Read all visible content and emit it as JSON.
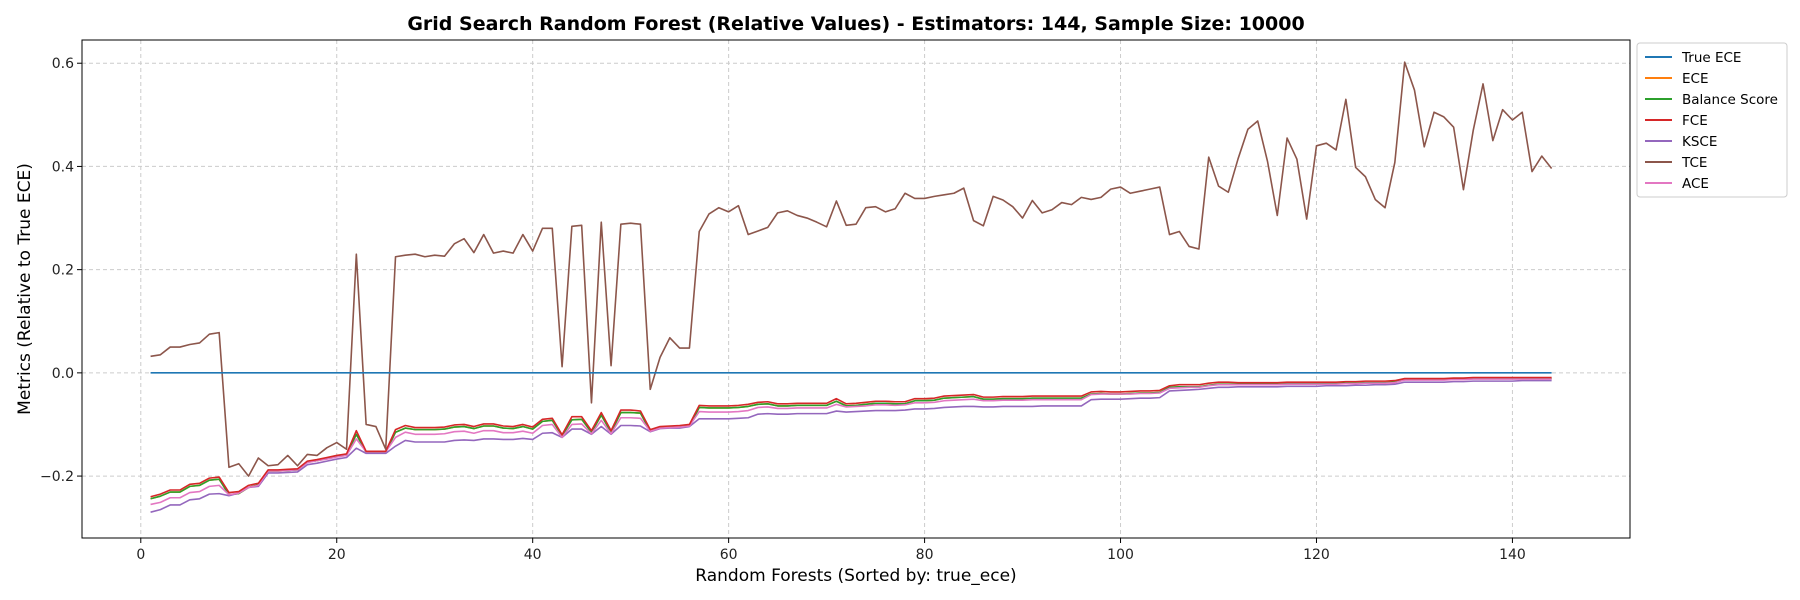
{
  "chart_data": {
    "type": "line",
    "title": "Grid Search Random Forest (Relative Values) - Estimators: 144, Sample Size: 10000",
    "xlabel": "Random Forests (Sorted by: true_ece)",
    "ylabel": "Metrics (Relative to True ECE)",
    "xlim": [
      -6,
      152
    ],
    "ylim": [
      -0.32,
      0.645
    ],
    "xticks": [
      0,
      20,
      40,
      60,
      80,
      100,
      120,
      140
    ],
    "yticks": [
      -0.2,
      0.0,
      0.2,
      0.4,
      0.6
    ],
    "ytick_labels": [
      "−0.2",
      "0.0",
      "0.2",
      "0.4",
      "0.6"
    ],
    "grid": true,
    "legend_position": "outside top-right",
    "x_start": 1,
    "x_step": 1,
    "series": [
      {
        "name": "True ECE",
        "color": "#1f77b4",
        "values": [
          0,
          0,
          0,
          0,
          0,
          0,
          0,
          0,
          0,
          0,
          0,
          0,
          0,
          0,
          0,
          0,
          0,
          0,
          0,
          0,
          0,
          0,
          0,
          0,
          0,
          0,
          0,
          0,
          0,
          0,
          0,
          0,
          0,
          0,
          0,
          0,
          0,
          0,
          0,
          0,
          0,
          0,
          0,
          0,
          0,
          0,
          0,
          0,
          0,
          0,
          0,
          0,
          0,
          0,
          0,
          0,
          0,
          0,
          0,
          0,
          0,
          0,
          0,
          0,
          0,
          0,
          0,
          0,
          0,
          0,
          0,
          0,
          0,
          0,
          0,
          0,
          0,
          0,
          0,
          0,
          0,
          0,
          0,
          0,
          0,
          0,
          0,
          0,
          0,
          0,
          0,
          0,
          0,
          0,
          0,
          0,
          0,
          0,
          0,
          0,
          0,
          0,
          0,
          0,
          0,
          0,
          0,
          0,
          0,
          0,
          0,
          0,
          0,
          0,
          0,
          0,
          0,
          0,
          0,
          0,
          0,
          0,
          0,
          0,
          0,
          0,
          0,
          0,
          0,
          0,
          0,
          0,
          0,
          0,
          0,
          0,
          0,
          0,
          0,
          0,
          0,
          0,
          0,
          0
        ]
      },
      {
        "name": "ECE",
        "color": "#ff7f0e",
        "values": [
          -0.244,
          -0.239,
          -0.231,
          -0.231,
          -0.22,
          -0.218,
          -0.208,
          -0.206,
          -0.236,
          -0.234,
          -0.222,
          -0.217,
          -0.19,
          -0.19,
          -0.189,
          -0.188,
          -0.173,
          -0.17,
          -0.166,
          -0.162,
          -0.159,
          -0.119,
          -0.154,
          -0.154,
          -0.154,
          -0.115,
          -0.107,
          -0.11,
          -0.11,
          -0.11,
          -0.109,
          -0.105,
          -0.104,
          -0.108,
          -0.103,
          -0.103,
          -0.107,
          -0.108,
          -0.104,
          -0.109,
          -0.094,
          -0.092,
          -0.122,
          -0.091,
          -0.09,
          -0.115,
          -0.082,
          -0.115,
          -0.077,
          -0.077,
          -0.078,
          -0.113,
          -0.107,
          -0.106,
          -0.105,
          -0.103,
          -0.067,
          -0.068,
          -0.068,
          -0.068,
          -0.067,
          -0.065,
          -0.061,
          -0.06,
          -0.064,
          -0.064,
          -0.063,
          -0.063,
          -0.063,
          -0.063,
          -0.055,
          -0.064,
          -0.063,
          -0.061,
          -0.059,
          -0.059,
          -0.06,
          -0.06,
          -0.054,
          -0.054,
          -0.053,
          -0.049,
          -0.048,
          -0.047,
          -0.046,
          -0.051,
          -0.051,
          -0.05,
          -0.05,
          -0.05,
          -0.049,
          -0.049,
          -0.049,
          -0.049,
          -0.049,
          -0.049,
          -0.041,
          -0.04,
          -0.041,
          -0.041,
          -0.04,
          -0.039,
          -0.039,
          -0.038,
          -0.028,
          -0.027,
          -0.027,
          -0.027,
          -0.024,
          -0.022,
          -0.022,
          -0.022,
          -0.022,
          -0.022,
          -0.022,
          -0.022,
          -0.021,
          -0.021,
          -0.021,
          -0.021,
          -0.021,
          -0.021,
          -0.02,
          -0.02,
          -0.019,
          -0.019,
          -0.019,
          -0.018,
          -0.013,
          -0.013,
          -0.013,
          -0.013,
          -0.013,
          -0.012,
          -0.012,
          -0.011,
          -0.011,
          -0.011,
          -0.011,
          -0.011,
          -0.011,
          -0.011,
          -0.011,
          -0.011
        ]
      },
      {
        "name": "Balance Score",
        "color": "#2ca02c",
        "values": [
          -0.244,
          -0.239,
          -0.231,
          -0.231,
          -0.22,
          -0.218,
          -0.208,
          -0.206,
          -0.236,
          -0.234,
          -0.222,
          -0.217,
          -0.19,
          -0.19,
          -0.189,
          -0.188,
          -0.173,
          -0.17,
          -0.166,
          -0.162,
          -0.159,
          -0.119,
          -0.154,
          -0.154,
          -0.154,
          -0.115,
          -0.107,
          -0.11,
          -0.11,
          -0.11,
          -0.109,
          -0.105,
          -0.104,
          -0.108,
          -0.103,
          -0.103,
          -0.107,
          -0.108,
          -0.104,
          -0.109,
          -0.094,
          -0.092,
          -0.122,
          -0.091,
          -0.09,
          -0.115,
          -0.082,
          -0.115,
          -0.077,
          -0.077,
          -0.078,
          -0.113,
          -0.107,
          -0.106,
          -0.105,
          -0.103,
          -0.067,
          -0.068,
          -0.068,
          -0.068,
          -0.067,
          -0.065,
          -0.061,
          -0.06,
          -0.064,
          -0.064,
          -0.063,
          -0.063,
          -0.063,
          -0.063,
          -0.055,
          -0.064,
          -0.063,
          -0.061,
          -0.059,
          -0.059,
          -0.06,
          -0.06,
          -0.054,
          -0.054,
          -0.053,
          -0.049,
          -0.048,
          -0.047,
          -0.046,
          -0.051,
          -0.051,
          -0.05,
          -0.05,
          -0.05,
          -0.049,
          -0.049,
          -0.049,
          -0.049,
          -0.049,
          -0.049,
          -0.041,
          -0.04,
          -0.041,
          -0.041,
          -0.04,
          -0.039,
          -0.039,
          -0.038,
          -0.028,
          -0.027,
          -0.027,
          -0.027,
          -0.024,
          -0.022,
          -0.022,
          -0.022,
          -0.022,
          -0.022,
          -0.022,
          -0.022,
          -0.021,
          -0.021,
          -0.021,
          -0.021,
          -0.021,
          -0.021,
          -0.02,
          -0.02,
          -0.019,
          -0.019,
          -0.019,
          -0.018,
          -0.013,
          -0.013,
          -0.013,
          -0.013,
          -0.013,
          -0.012,
          -0.012,
          -0.011,
          -0.011,
          -0.011,
          -0.011,
          -0.011,
          -0.011,
          -0.011,
          -0.011,
          -0.011
        ]
      },
      {
        "name": "FCE",
        "color": "#d62728",
        "values": [
          -0.24,
          -0.235,
          -0.227,
          -0.227,
          -0.216,
          -0.214,
          -0.204,
          -0.202,
          -0.232,
          -0.23,
          -0.218,
          -0.214,
          -0.188,
          -0.188,
          -0.187,
          -0.186,
          -0.171,
          -0.168,
          -0.164,
          -0.16,
          -0.157,
          -0.112,
          -0.152,
          -0.152,
          -0.152,
          -0.11,
          -0.102,
          -0.106,
          -0.106,
          -0.106,
          -0.105,
          -0.101,
          -0.1,
          -0.104,
          -0.099,
          -0.099,
          -0.103,
          -0.104,
          -0.1,
          -0.105,
          -0.09,
          -0.088,
          -0.12,
          -0.085,
          -0.085,
          -0.112,
          -0.077,
          -0.112,
          -0.072,
          -0.072,
          -0.074,
          -0.11,
          -0.104,
          -0.103,
          -0.102,
          -0.1,
          -0.063,
          -0.064,
          -0.064,
          -0.064,
          -0.063,
          -0.061,
          -0.057,
          -0.056,
          -0.06,
          -0.06,
          -0.059,
          -0.059,
          -0.059,
          -0.059,
          -0.05,
          -0.06,
          -0.059,
          -0.057,
          -0.055,
          -0.055,
          -0.056,
          -0.056,
          -0.05,
          -0.05,
          -0.049,
          -0.045,
          -0.044,
          -0.043,
          -0.042,
          -0.047,
          -0.047,
          -0.046,
          -0.046,
          -0.046,
          -0.045,
          -0.045,
          -0.045,
          -0.045,
          -0.045,
          -0.045,
          -0.037,
          -0.036,
          -0.037,
          -0.037,
          -0.036,
          -0.035,
          -0.035,
          -0.034,
          -0.025,
          -0.023,
          -0.023,
          -0.023,
          -0.02,
          -0.018,
          -0.018,
          -0.019,
          -0.019,
          -0.019,
          -0.019,
          -0.019,
          -0.018,
          -0.018,
          -0.018,
          -0.018,
          -0.018,
          -0.018,
          -0.017,
          -0.017,
          -0.016,
          -0.016,
          -0.016,
          -0.015,
          -0.011,
          -0.011,
          -0.011,
          -0.011,
          -0.011,
          -0.01,
          -0.01,
          -0.009,
          -0.009,
          -0.009,
          -0.009,
          -0.009,
          -0.009,
          -0.009,
          -0.009,
          -0.009
        ]
      },
      {
        "name": "KSCE",
        "color": "#9467bd",
        "values": [
          -0.27,
          -0.265,
          -0.256,
          -0.256,
          -0.246,
          -0.244,
          -0.235,
          -0.234,
          -0.238,
          -0.233,
          -0.222,
          -0.22,
          -0.194,
          -0.194,
          -0.193,
          -0.192,
          -0.178,
          -0.175,
          -0.171,
          -0.167,
          -0.164,
          -0.146,
          -0.156,
          -0.156,
          -0.156,
          -0.142,
          -0.131,
          -0.134,
          -0.134,
          -0.134,
          -0.134,
          -0.131,
          -0.13,
          -0.131,
          -0.128,
          -0.128,
          -0.129,
          -0.129,
          -0.127,
          -0.129,
          -0.117,
          -0.116,
          -0.125,
          -0.109,
          -0.109,
          -0.119,
          -0.104,
          -0.119,
          -0.102,
          -0.102,
          -0.103,
          -0.114,
          -0.108,
          -0.107,
          -0.107,
          -0.104,
          -0.089,
          -0.089,
          -0.089,
          -0.089,
          -0.088,
          -0.087,
          -0.08,
          -0.079,
          -0.08,
          -0.08,
          -0.079,
          -0.079,
          -0.079,
          -0.079,
          -0.074,
          -0.076,
          -0.075,
          -0.074,
          -0.073,
          -0.073,
          -0.073,
          -0.072,
          -0.07,
          -0.07,
          -0.069,
          -0.067,
          -0.066,
          -0.065,
          -0.065,
          -0.066,
          -0.066,
          -0.065,
          -0.065,
          -0.065,
          -0.065,
          -0.064,
          -0.064,
          -0.064,
          -0.064,
          -0.064,
          -0.052,
          -0.051,
          -0.051,
          -0.051,
          -0.05,
          -0.049,
          -0.049,
          -0.048,
          -0.035,
          -0.034,
          -0.033,
          -0.032,
          -0.03,
          -0.028,
          -0.028,
          -0.027,
          -0.027,
          -0.027,
          -0.027,
          -0.027,
          -0.026,
          -0.026,
          -0.026,
          -0.026,
          -0.025,
          -0.025,
          -0.025,
          -0.024,
          -0.024,
          -0.023,
          -0.023,
          -0.022,
          -0.018,
          -0.018,
          -0.018,
          -0.018,
          -0.018,
          -0.017,
          -0.017,
          -0.016,
          -0.016,
          -0.016,
          -0.016,
          -0.016,
          -0.015,
          -0.015,
          -0.015,
          -0.015
        ]
      },
      {
        "name": "TCE",
        "color": "#8c564b",
        "values": [
          0.032,
          0.035,
          0.05,
          0.05,
          0.055,
          0.058,
          0.075,
          0.078,
          -0.183,
          -0.176,
          -0.2,
          -0.165,
          -0.18,
          -0.178,
          -0.16,
          -0.18,
          -0.158,
          -0.16,
          -0.145,
          -0.135,
          -0.148,
          0.23,
          -0.1,
          -0.104,
          -0.148,
          0.225,
          0.228,
          0.23,
          0.225,
          0.228,
          0.226,
          0.25,
          0.26,
          0.233,
          0.268,
          0.232,
          0.236,
          0.232,
          0.268,
          0.236,
          0.28,
          0.28,
          0.012,
          0.284,
          0.286,
          -0.058,
          0.292,
          0.014,
          0.288,
          0.29,
          0.288,
          -0.032,
          0.03,
          0.068,
          0.048,
          0.048,
          0.274,
          0.308,
          0.32,
          0.312,
          0.324,
          0.268,
          0.275,
          0.282,
          0.31,
          0.314,
          0.305,
          0.3,
          0.292,
          0.283,
          0.333,
          0.286,
          0.288,
          0.32,
          0.322,
          0.312,
          0.318,
          0.348,
          0.338,
          0.338,
          0.342,
          0.345,
          0.348,
          0.358,
          0.295,
          0.285,
          0.342,
          0.335,
          0.322,
          0.3,
          0.334,
          0.31,
          0.316,
          0.33,
          0.326,
          0.34,
          0.336,
          0.34,
          0.356,
          0.36,
          0.348,
          0.352,
          0.356,
          0.36,
          0.268,
          0.274,
          0.245,
          0.24,
          0.418,
          0.362,
          0.35,
          0.415,
          0.472,
          0.488,
          0.41,
          0.305,
          0.455,
          0.414,
          0.298,
          0.44,
          0.445,
          0.432,
          0.53,
          0.398,
          0.38,
          0.336,
          0.32,
          0.408,
          0.602,
          0.548,
          0.438,
          0.505,
          0.496,
          0.476,
          0.355,
          0.47,
          0.56,
          0.45,
          0.51,
          0.49,
          0.505,
          0.39,
          0.42,
          0.396
        ]
      },
      {
        "name": "ACE",
        "color": "#e377c2",
        "values": [
          -0.255,
          -0.251,
          -0.242,
          -0.242,
          -0.232,
          -0.23,
          -0.22,
          -0.218,
          -0.236,
          -0.233,
          -0.222,
          -0.218,
          -0.19,
          -0.19,
          -0.189,
          -0.188,
          -0.174,
          -0.17,
          -0.167,
          -0.163,
          -0.16,
          -0.128,
          -0.153,
          -0.153,
          -0.153,
          -0.125,
          -0.115,
          -0.119,
          -0.119,
          -0.119,
          -0.118,
          -0.114,
          -0.113,
          -0.117,
          -0.112,
          -0.112,
          -0.116,
          -0.116,
          -0.113,
          -0.117,
          -0.102,
          -0.1,
          -0.125,
          -0.1,
          -0.099,
          -0.118,
          -0.092,
          -0.118,
          -0.087,
          -0.087,
          -0.088,
          -0.113,
          -0.107,
          -0.106,
          -0.105,
          -0.103,
          -0.075,
          -0.076,
          -0.076,
          -0.076,
          -0.075,
          -0.073,
          -0.067,
          -0.066,
          -0.069,
          -0.069,
          -0.068,
          -0.068,
          -0.068,
          -0.068,
          -0.061,
          -0.066,
          -0.065,
          -0.064,
          -0.062,
          -0.062,
          -0.063,
          -0.062,
          -0.058,
          -0.058,
          -0.057,
          -0.054,
          -0.053,
          -0.052,
          -0.051,
          -0.054,
          -0.054,
          -0.053,
          -0.053,
          -0.053,
          -0.052,
          -0.052,
          -0.052,
          -0.052,
          -0.052,
          -0.052,
          -0.042,
          -0.041,
          -0.041,
          -0.041,
          -0.041,
          -0.04,
          -0.04,
          -0.039,
          -0.03,
          -0.029,
          -0.028,
          -0.028,
          -0.025,
          -0.023,
          -0.023,
          -0.023,
          -0.023,
          -0.023,
          -0.023,
          -0.023,
          -0.022,
          -0.022,
          -0.022,
          -0.022,
          -0.022,
          -0.022,
          -0.021,
          -0.021,
          -0.02,
          -0.02,
          -0.02,
          -0.019,
          -0.014,
          -0.014,
          -0.014,
          -0.014,
          -0.014,
          -0.013,
          -0.013,
          -0.012,
          -0.012,
          -0.012,
          -0.012,
          -0.012,
          -0.012,
          -0.012,
          -0.012,
          -0.012
        ]
      }
    ]
  }
}
